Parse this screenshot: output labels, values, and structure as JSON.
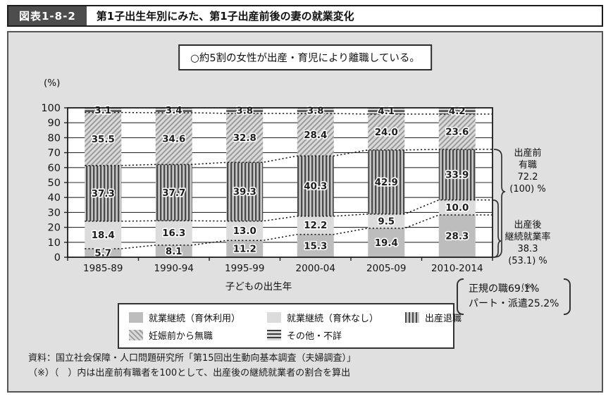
{
  "header": {
    "fig_label": "図表1-8-2",
    "title": "第1子出生年別にみた、第1子出産前後の妻の就業変化"
  },
  "callout": "○約5割の女性が出産・育児により離職している。",
  "chart_data": {
    "type": "bar",
    "subtype": "stacked-percentage",
    "unit_label": "(%)",
    "xlabel": "子どもの出生年",
    "ylim": [
      0,
      100
    ],
    "yticks": [
      0,
      10,
      20,
      30,
      40,
      50,
      60,
      70,
      80,
      90,
      100
    ],
    "grid": true,
    "categories": [
      "1985-89",
      "1990-94",
      "1995-99",
      "2000-04",
      "2005-09",
      "2010-2014"
    ],
    "series": [
      {
        "name": "就業継続（育休利用）",
        "pattern": "solid-medium-gray",
        "values": [
          5.7,
          8.1,
          11.2,
          15.3,
          19.4,
          28.3
        ]
      },
      {
        "name": "就業継続（育休なし）",
        "pattern": "solid-light-gray",
        "values": [
          18.4,
          16.3,
          13.0,
          12.2,
          9.5,
          10.0
        ]
      },
      {
        "name": "出産退職",
        "pattern": "vertical-stripes",
        "values": [
          37.3,
          37.7,
          39.3,
          40.3,
          42.9,
          33.9
        ]
      },
      {
        "name": "妊娠前から無職",
        "pattern": "diagonal-hatch",
        "values": [
          35.5,
          34.6,
          32.8,
          28.4,
          24.0,
          23.6
        ]
      },
      {
        "name": "その他・不詳",
        "pattern": "horizontal-stripes",
        "values": [
          3.1,
          3.4,
          3.8,
          3.8,
          4.1,
          4.2
        ]
      }
    ],
    "colors": {
      "panel_bg": "#e0e0e0",
      "plot_bg": "#ffffff",
      "solid_medium_gray": "#bdbdbd",
      "solid_light_gray": "#dcdcdc",
      "stripe_dark": "#4a4a4a"
    },
    "legend_position": "bottom-box"
  },
  "annotations": {
    "before_birth": "出産前\n有職\n72.2\n(100) %",
    "after_birth": "出産後\n継続就業率\n38.3\n(53.1) %",
    "after_birth_note": "(※)",
    "job_note_line1": "正規の職69.1%",
    "job_note_line2": "パート・派遣25.2%"
  },
  "footer": {
    "source": "資料：国立社会保障・人口問題研究所「第15回出生動向基本調査（夫婦調査）」",
    "note": "（※）（　）内は出産前有職者を100として、出産後の継続就業者の割合を算出"
  }
}
